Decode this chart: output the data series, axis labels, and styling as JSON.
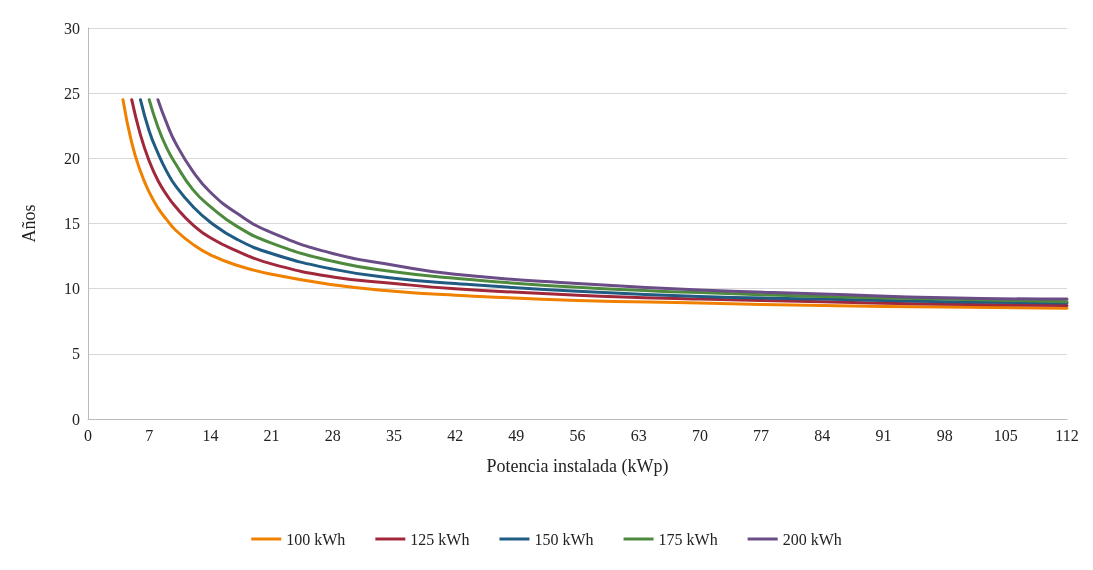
{
  "chart_data": {
    "type": "line",
    "xlabel": "Potencia instalada (kWp)",
    "ylabel": "Años",
    "xlim": [
      0,
      112
    ],
    "xticks": [
      0,
      7,
      14,
      21,
      28,
      35,
      42,
      49,
      56,
      63,
      70,
      77,
      84,
      91,
      98,
      105,
      112
    ],
    "ylim": [
      0,
      30
    ],
    "yticks": [
      0,
      5,
      10,
      15,
      20,
      25,
      30
    ],
    "grid": "y",
    "legend": "bottom",
    "marker": "none",
    "line_style": "solid",
    "series": [
      {
        "name": "100 kWh",
        "color": "#f08000",
        "x": [
          4,
          5,
          6,
          7,
          8,
          9,
          10,
          12,
          14,
          17,
          21,
          28,
          35,
          42,
          56,
          70,
          84,
          98,
          112
        ],
        "values": [
          24.5,
          21.2,
          19.0,
          17.4,
          16.2,
          15.3,
          14.5,
          13.4,
          12.6,
          11.8,
          11.1,
          10.3,
          9.8,
          9.5,
          9.1,
          8.9,
          8.7,
          8.6,
          8.5
        ]
      },
      {
        "name": "125 kWh",
        "color": "#a0283a",
        "x": [
          5,
          6,
          7,
          8,
          9,
          10,
          12,
          14,
          17,
          21,
          28,
          35,
          42,
          56,
          70,
          84,
          98,
          112
        ],
        "values": [
          24.5,
          21.8,
          19.8,
          18.3,
          17.2,
          16.3,
          14.9,
          13.9,
          12.9,
          11.9,
          10.9,
          10.4,
          10.0,
          9.5,
          9.2,
          9.0,
          8.8,
          8.7
        ]
      },
      {
        "name": "150 kWh",
        "color": "#1f5b82",
        "x": [
          6,
          7,
          8,
          9,
          10,
          12,
          14,
          17,
          21,
          28,
          35,
          42,
          56,
          70,
          84,
          98,
          112
        ],
        "values": [
          24.5,
          22.1,
          20.4,
          19.0,
          17.9,
          16.3,
          15.1,
          13.8,
          12.7,
          11.5,
          10.8,
          10.4,
          9.8,
          9.4,
          9.2,
          9.0,
          8.9
        ]
      },
      {
        "name": "175 kWh",
        "color": "#4e8a3e",
        "x": [
          7,
          8,
          9,
          10,
          12,
          14,
          17,
          21,
          28,
          35,
          42,
          56,
          70,
          84,
          98,
          112
        ],
        "values": [
          24.5,
          22.4,
          20.8,
          19.6,
          17.6,
          16.3,
          14.8,
          13.5,
          12.1,
          11.3,
          10.8,
          10.1,
          9.7,
          9.4,
          9.2,
          9.0
        ]
      },
      {
        "name": "200 kWh",
        "color": "#6a4c86",
        "x": [
          8,
          9,
          10,
          12,
          14,
          17,
          21,
          28,
          35,
          42,
          56,
          70,
          84,
          98,
          112
        ],
        "values": [
          24.5,
          22.7,
          21.2,
          19.0,
          17.4,
          15.8,
          14.3,
          12.7,
          11.8,
          11.1,
          10.4,
          9.9,
          9.6,
          9.3,
          9.2
        ]
      }
    ]
  }
}
